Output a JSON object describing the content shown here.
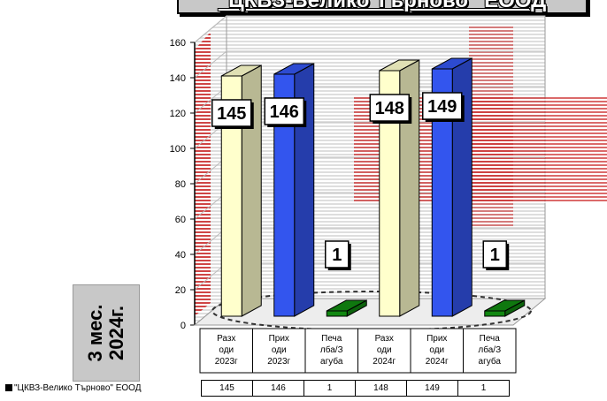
{
  "chart_data": {
    "type": "bar",
    "title": "\"ЦКВЗ-Велико Търново\" ЕООД",
    "side_label_lines": [
      "3 мес.",
      "2024г."
    ],
    "categories": [
      [
        "Разх",
        "оди",
        "2023г"
      ],
      [
        "Прих",
        "оди",
        "2023г"
      ],
      [
        "Печа",
        "лба/З",
        "агуба"
      ],
      [
        "Разх",
        "оди",
        "2024г"
      ],
      [
        "Прих",
        "оди",
        "2024г"
      ],
      [
        "Печа",
        "лба/З",
        "агуба"
      ]
    ],
    "series": [
      {
        "name": "\"ЦКВЗ-Велико Търново\" ЕООД",
        "values": [
          145,
          146,
          1,
          148,
          149,
          1
        ]
      }
    ],
    "value_labels": [
      "145",
      "146",
      "1",
      "148",
      "149",
      "1"
    ],
    "bar_colors": [
      "#ffffcc",
      "#3355ee",
      "#118811",
      "#ffffcc",
      "#3355ee",
      "#118811"
    ],
    "ylim": [
      0,
      160
    ],
    "yticks": [
      "0",
      "20",
      "40",
      "60",
      "80",
      "100",
      "120",
      "140",
      "160"
    ],
    "grid": true,
    "legend_position": "bottom-left (data table)"
  }
}
